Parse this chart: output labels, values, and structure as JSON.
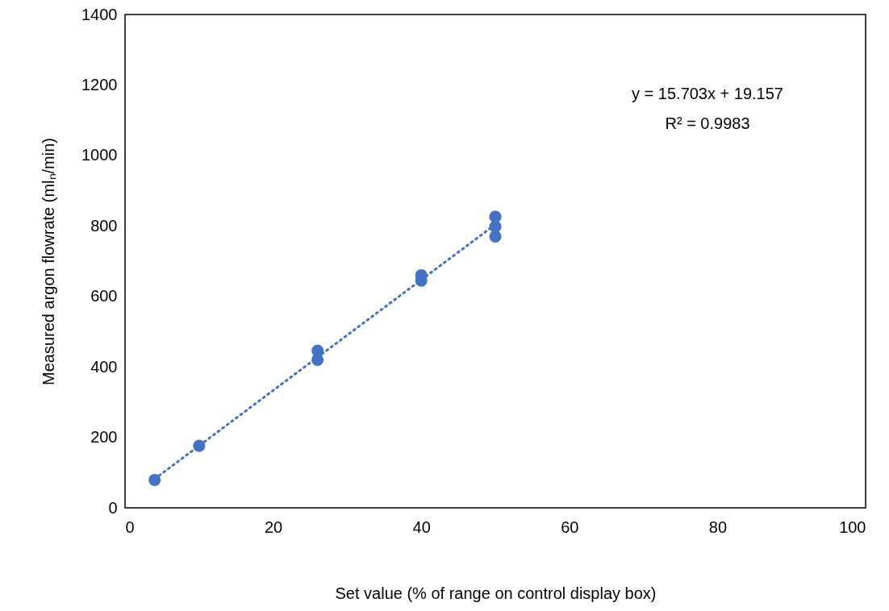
{
  "chart_data": {
    "type": "scatter",
    "xlabel": "Set value (% of range on control display box)",
    "ylabel": "Measured argon flowrate (mlₙ/min)",
    "xlim": [
      0,
      100
    ],
    "xticks": [
      0,
      20,
      40,
      60,
      80,
      100
    ],
    "ylim": [
      0,
      1400
    ],
    "yticks": [
      0,
      200,
      400,
      600,
      800,
      1000,
      1200,
      1400
    ],
    "grid": false,
    "marker": "circle",
    "annotations": [
      "y = 15.703x + 19.157",
      "R² = 0.9983"
    ],
    "series": [
      {
        "color": "#4472c4",
        "x": [
          4,
          10,
          26,
          26,
          40,
          40,
          50,
          50,
          50
        ],
        "values": [
          79,
          176,
          420,
          446,
          645,
          660,
          770,
          798,
          826
        ]
      },
      {
        "type": "line",
        "color": "#4472c4",
        "line_style": "dotted",
        "marker": "none",
        "x": [
          4,
          50
        ],
        "values": [
          82,
          804
        ]
      }
    ]
  }
}
